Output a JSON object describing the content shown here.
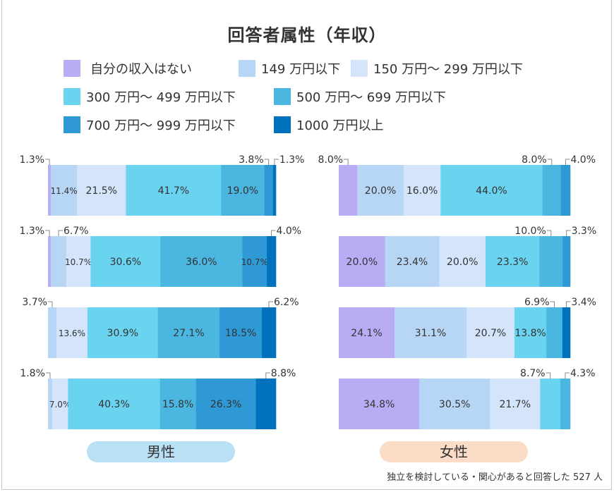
{
  "chart_data": {
    "type": "bar",
    "orientation": "horizontal",
    "stacked": "100%",
    "title": "回答者属性（年収）",
    "categories": [
      "自分の収入はない",
      "149 万円以下",
      "150 万円～ 299 万円以下",
      "300 万円～ 499 万円以下",
      "500 万円～ 699 万円以下",
      "700 万円～ 999 万円以下",
      "1000 万円以上"
    ],
    "colors": [
      "#b9acf5",
      "#b7d6f5",
      "#d3e4fb",
      "#6ad3ef",
      "#4bb6e0",
      "#2e99d4",
      "#0071bc"
    ],
    "legend_position": "top",
    "panels": [
      {
        "label": "男性",
        "pill_color": "#b9e0f4",
        "rows": [
          [
            1.3,
            11.4,
            21.5,
            41.7,
            19.0,
            3.8,
            1.3
          ],
          [
            1.3,
            6.7,
            10.7,
            30.6,
            36.0,
            10.7,
            4.0
          ],
          [
            0,
            3.7,
            13.6,
            30.9,
            27.1,
            18.5,
            6.2
          ],
          [
            0,
            1.8,
            7.0,
            40.3,
            15.8,
            26.3,
            8.8
          ]
        ]
      },
      {
        "label": "女性",
        "pill_color": "#fbdcc6",
        "rows": [
          [
            8.0,
            20.0,
            16.0,
            44.0,
            8.0,
            4.0,
            0
          ],
          [
            20.0,
            23.4,
            20.0,
            23.3,
            10.0,
            3.3,
            0
          ],
          [
            24.1,
            31.1,
            20.7,
            13.8,
            6.9,
            0,
            3.4
          ],
          [
            34.8,
            30.5,
            21.7,
            8.7,
            4.3,
            0,
            0
          ]
        ]
      }
    ],
    "value_suffix": "%"
  },
  "footnote": "独立を検討している・関心があると回答した 527 人"
}
